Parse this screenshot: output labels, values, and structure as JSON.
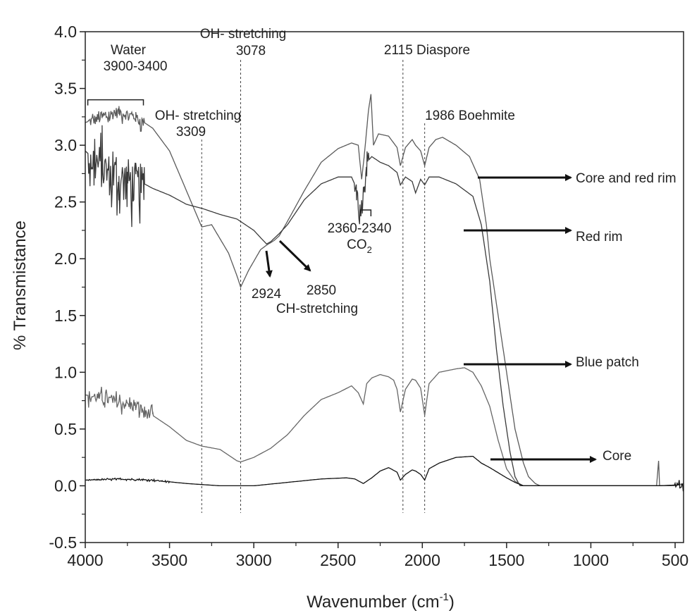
{
  "chart_data": {
    "type": "line",
    "title": "",
    "xlabel": "Wavenumber (cm",
    "xlabel_sup": "-1",
    "xlabel_close": ")",
    "ylabel": "% Transmistance",
    "xlim": [
      4000,
      450
    ],
    "ylim": [
      -0.5,
      4.0
    ],
    "x_ticks": [
      4000,
      3500,
      3000,
      2500,
      2000,
      1500,
      1000,
      500
    ],
    "x_tick_labels": [
      "4000",
      "3500",
      "3000",
      "2500",
      "2000",
      "1500",
      "1000",
      "500"
    ],
    "y_ticks": [
      -0.5,
      0.0,
      0.5,
      1.0,
      1.5,
      2.0,
      2.5,
      3.0,
      3.5,
      4.0
    ],
    "y_tick_labels": [
      "-0.5",
      "0.0",
      "0.5",
      "1.0",
      "1.5",
      "2.0",
      "2.5",
      "3.0",
      "3.5",
      "4.0"
    ],
    "grid": false,
    "series": [
      {
        "name": "Core and red rim",
        "color": "#5a5a5a",
        "noise": [
          [
            3980,
            3650,
            0.1
          ]
        ],
        "points": [
          [
            4000,
            3.2
          ],
          [
            3900,
            3.25
          ],
          [
            3800,
            3.3
          ],
          [
            3700,
            3.25
          ],
          [
            3600,
            3.15
          ],
          [
            3500,
            2.95
          ],
          [
            3400,
            2.6
          ],
          [
            3309,
            2.28
          ],
          [
            3250,
            2.3
          ],
          [
            3150,
            2.05
          ],
          [
            3100,
            1.85
          ],
          [
            3078,
            1.75
          ],
          [
            3030,
            1.9
          ],
          [
            2960,
            2.08
          ],
          [
            2924,
            2.12
          ],
          [
            2880,
            2.16
          ],
          [
            2850,
            2.2
          ],
          [
            2800,
            2.33
          ],
          [
            2700,
            2.6
          ],
          [
            2600,
            2.85
          ],
          [
            2500,
            2.97
          ],
          [
            2420,
            3.02
          ],
          [
            2380,
            3.0
          ],
          [
            2360,
            2.7
          ],
          [
            2345,
            2.9
          ],
          [
            2320,
            3.3
          ],
          [
            2305,
            3.45
          ],
          [
            2290,
            3.0
          ],
          [
            2260,
            3.1
          ],
          [
            2200,
            3.08
          ],
          [
            2150,
            2.98
          ],
          [
            2130,
            2.82
          ],
          [
            2100,
            2.98
          ],
          [
            2060,
            3.05
          ],
          [
            2040,
            3.0
          ],
          [
            2010,
            2.95
          ],
          [
            1986,
            2.82
          ],
          [
            1960,
            2.98
          ],
          [
            1920,
            3.05
          ],
          [
            1880,
            3.07
          ],
          [
            1800,
            3.0
          ],
          [
            1720,
            2.9
          ],
          [
            1660,
            2.7
          ],
          [
            1620,
            2.3
          ],
          [
            1600,
            2.0
          ],
          [
            1560,
            1.6
          ],
          [
            1500,
            1.0
          ],
          [
            1450,
            0.5
          ],
          [
            1400,
            0.2
          ],
          [
            1370,
            0.08
          ],
          [
            1330,
            0.02
          ],
          [
            1300,
            0.0
          ],
          [
            1200,
            0.0
          ],
          [
            1000,
            0.0
          ],
          [
            800,
            0.0
          ],
          [
            610,
            0.0
          ],
          [
            598,
            0.22
          ],
          [
            592,
            0.0
          ],
          [
            500,
            0.0
          ],
          [
            450,
            0.02
          ]
        ]
      },
      {
        "name": "Red rim",
        "color": "#3a3a3a",
        "noise": [
          [
            3980,
            3650,
            0.38
          ],
          [
            2400,
            2320,
            0.12
          ]
        ],
        "points": [
          [
            4000,
            2.95
          ],
          [
            3950,
            2.88
          ],
          [
            3900,
            2.82
          ],
          [
            3850,
            2.75
          ],
          [
            3800,
            2.7
          ],
          [
            3750,
            2.72
          ],
          [
            3700,
            2.68
          ],
          [
            3650,
            2.66
          ],
          [
            3600,
            2.62
          ],
          [
            3500,
            2.56
          ],
          [
            3400,
            2.48
          ],
          [
            3300,
            2.44
          ],
          [
            3200,
            2.39
          ],
          [
            3100,
            2.35
          ],
          [
            3000,
            2.25
          ],
          [
            2950,
            2.17
          ],
          [
            2924,
            2.13
          ],
          [
            2900,
            2.15
          ],
          [
            2850,
            2.22
          ],
          [
            2800,
            2.3
          ],
          [
            2700,
            2.52
          ],
          [
            2600,
            2.66
          ],
          [
            2500,
            2.72
          ],
          [
            2420,
            2.72
          ],
          [
            2390,
            2.62
          ],
          [
            2370,
            2.4
          ],
          [
            2350,
            2.6
          ],
          [
            2330,
            2.85
          ],
          [
            2300,
            2.9
          ],
          [
            2250,
            2.85
          ],
          [
            2200,
            2.82
          ],
          [
            2150,
            2.76
          ],
          [
            2130,
            2.65
          ],
          [
            2100,
            2.72
          ],
          [
            2060,
            2.68
          ],
          [
            2040,
            2.58
          ],
          [
            2010,
            2.7
          ],
          [
            1986,
            2.65
          ],
          [
            1960,
            2.72
          ],
          [
            1900,
            2.72
          ],
          [
            1800,
            2.66
          ],
          [
            1700,
            2.55
          ],
          [
            1650,
            2.3
          ],
          [
            1600,
            1.8
          ],
          [
            1560,
            1.2
          ],
          [
            1520,
            0.7
          ],
          [
            1480,
            0.3
          ],
          [
            1450,
            0.08
          ],
          [
            1420,
            0.0
          ],
          [
            1300,
            0.0
          ],
          [
            1000,
            0.0
          ],
          [
            800,
            0.0
          ],
          [
            600,
            0.0
          ],
          [
            500,
            0.0
          ],
          [
            450,
            0.02
          ]
        ]
      },
      {
        "name": "Blue patch",
        "color": "#666666",
        "noise": [
          [
            3980,
            3600,
            0.1
          ]
        ],
        "points": [
          [
            4000,
            0.8
          ],
          [
            3900,
            0.78
          ],
          [
            3800,
            0.74
          ],
          [
            3700,
            0.7
          ],
          [
            3600,
            0.62
          ],
          [
            3500,
            0.52
          ],
          [
            3400,
            0.4
          ],
          [
            3309,
            0.35
          ],
          [
            3200,
            0.32
          ],
          [
            3150,
            0.27
          ],
          [
            3100,
            0.22
          ],
          [
            3078,
            0.21
          ],
          [
            3000,
            0.25
          ],
          [
            2900,
            0.33
          ],
          [
            2800,
            0.45
          ],
          [
            2700,
            0.62
          ],
          [
            2600,
            0.76
          ],
          [
            2500,
            0.82
          ],
          [
            2420,
            0.88
          ],
          [
            2380,
            0.82
          ],
          [
            2350,
            0.72
          ],
          [
            2330,
            0.9
          ],
          [
            2300,
            0.95
          ],
          [
            2250,
            0.98
          ],
          [
            2200,
            0.96
          ],
          [
            2170,
            0.93
          ],
          [
            2150,
            0.85
          ],
          [
            2130,
            0.65
          ],
          [
            2100,
            0.85
          ],
          [
            2060,
            0.94
          ],
          [
            2040,
            0.93
          ],
          [
            2010,
            0.86
          ],
          [
            1986,
            0.62
          ],
          [
            1960,
            0.9
          ],
          [
            1900,
            1.0
          ],
          [
            1800,
            1.03
          ],
          [
            1750,
            1.04
          ],
          [
            1700,
            1.0
          ],
          [
            1650,
            0.88
          ],
          [
            1600,
            0.7
          ],
          [
            1550,
            0.4
          ],
          [
            1500,
            0.15
          ],
          [
            1450,
            0.04
          ],
          [
            1400,
            0.0
          ],
          [
            1300,
            0.0
          ],
          [
            1000,
            0.0
          ],
          [
            800,
            0.0
          ],
          [
            600,
            0.0
          ],
          [
            500,
            0.0
          ],
          [
            450,
            0.02
          ]
        ]
      },
      {
        "name": "Core",
        "color": "#111111",
        "noise": [
          [
            3980,
            3500,
            0.01
          ],
          [
            500,
            450,
            0.05
          ]
        ],
        "points": [
          [
            4000,
            0.05
          ],
          [
            3800,
            0.06
          ],
          [
            3600,
            0.05
          ],
          [
            3400,
            0.02
          ],
          [
            3200,
            0.0
          ],
          [
            3000,
            0.0
          ],
          [
            2800,
            0.03
          ],
          [
            2600,
            0.06
          ],
          [
            2450,
            0.07
          ],
          [
            2400,
            0.06
          ],
          [
            2350,
            0.02
          ],
          [
            2300,
            0.07
          ],
          [
            2250,
            0.13
          ],
          [
            2200,
            0.16
          ],
          [
            2150,
            0.12
          ],
          [
            2130,
            0.05
          ],
          [
            2100,
            0.1
          ],
          [
            2060,
            0.14
          ],
          [
            2040,
            0.13
          ],
          [
            2010,
            0.1
          ],
          [
            1986,
            0.05
          ],
          [
            1960,
            0.15
          ],
          [
            1900,
            0.2
          ],
          [
            1800,
            0.25
          ],
          [
            1700,
            0.26
          ],
          [
            1650,
            0.2
          ],
          [
            1600,
            0.16
          ],
          [
            1500,
            0.07
          ],
          [
            1450,
            0.03
          ],
          [
            1400,
            0.0
          ],
          [
            1200,
            0.0
          ],
          [
            1000,
            0.0
          ],
          [
            800,
            0.0
          ],
          [
            600,
            0.0
          ],
          [
            450,
            0.01
          ]
        ]
      }
    ],
    "vlines": [
      3309,
      3078,
      2115,
      1986
    ],
    "annotations": [
      {
        "id": "water",
        "lines": [
          "Water",
          "3900-3400"
        ]
      },
      {
        "id": "oh3078",
        "lines": [
          "OH- stretching",
          "3078"
        ]
      },
      {
        "id": "oh3309",
        "lines": [
          "OH- stretching",
          "3309"
        ]
      },
      {
        "id": "diaspore",
        "lines": [
          "2115 Diaspore"
        ]
      },
      {
        "id": "boehmite",
        "lines": [
          "1986 Boehmite"
        ]
      },
      {
        "id": "co2",
        "lines": [
          "2360-2340"
        ],
        "formula": "CO",
        "formula_sub": "2"
      },
      {
        "id": "ch",
        "lines": [
          "2924",
          "2850",
          "CH-stretching"
        ]
      }
    ],
    "series_labels": [
      "Core and red rim",
      "Red rim",
      "Blue patch",
      "Core"
    ]
  }
}
